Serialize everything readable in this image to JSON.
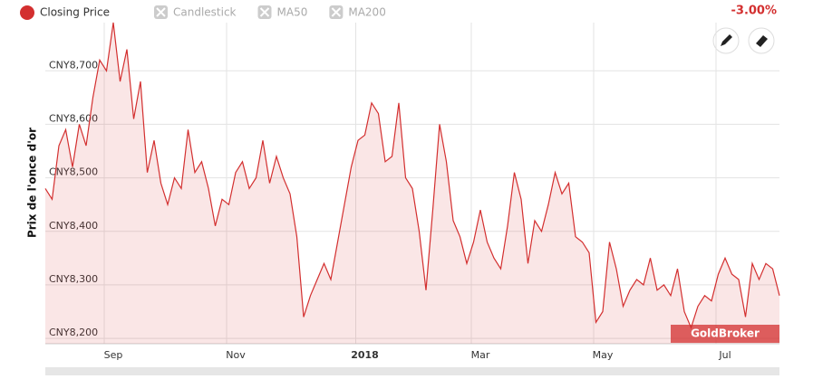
{
  "chart_data": {
    "type": "line",
    "y_axis_label": "Prix de l'once d'or",
    "change_label": "-3.00%",
    "watermark": "GoldBroker",
    "toggles": [
      "Candlestick",
      "MA50",
      "MA200"
    ],
    "categories": [
      null,
      null,
      null,
      null,
      null,
      null,
      null,
      null,
      null,
      null,
      "Sep",
      null,
      null,
      null,
      null,
      null,
      null,
      null,
      null,
      null,
      null,
      null,
      null,
      null,
      null,
      null,
      null,
      null,
      "Nov",
      null,
      null,
      null,
      null,
      null,
      null,
      null,
      null,
      null,
      null,
      null,
      null,
      null,
      null,
      null,
      null,
      null,
      null,
      "2018",
      null,
      null,
      null,
      null,
      null,
      null,
      null,
      null,
      null,
      null,
      null,
      null,
      null,
      null,
      null,
      null,
      "Mar",
      null,
      null,
      null,
      null,
      null,
      null,
      null,
      null,
      null,
      null,
      null,
      null,
      null,
      null,
      null,
      null,
      null,
      "May",
      null,
      null,
      null,
      null,
      null,
      null,
      null,
      null,
      null,
      null,
      null,
      null,
      null,
      null,
      null,
      null,
      null,
      "Jul",
      null,
      null,
      null,
      null,
      null,
      null,
      null,
      null
    ],
    "series": [
      {
        "name": "Closing Price",
        "color": "#d32f2f",
        "values": [
          8480,
          8460,
          8560,
          8590,
          8520,
          8600,
          8560,
          8650,
          8720,
          8700,
          8790,
          8680,
          8740,
          8610,
          8680,
          8510,
          8570,
          8490,
          8450,
          8500,
          8480,
          8590,
          8510,
          8530,
          8480,
          8410,
          8460,
          8450,
          8510,
          8530,
          8480,
          8500,
          8570,
          8490,
          8540,
          8500,
          8470,
          8390,
          8240,
          8280,
          8310,
          8340,
          8310,
          8380,
          8450,
          8520,
          8570,
          8580,
          8640,
          8620,
          8530,
          8540,
          8640,
          8500,
          8480,
          8400,
          8290,
          8440,
          8600,
          8530,
          8420,
          8390,
          8340,
          8380,
          8440,
          8380,
          8350,
          8330,
          8410,
          8510,
          8460,
          8340,
          8420,
          8400,
          8450,
          8510,
          8470,
          8490,
          8390,
          8380,
          8360,
          8230,
          8250,
          8380,
          8330,
          8260,
          8290,
          8310,
          8300,
          8350,
          8290,
          8300,
          8280,
          8330,
          8250,
          8220,
          8260,
          8280,
          8270,
          8320,
          8350,
          8320,
          8310,
          8240,
          8340,
          8310,
          8340,
          8330,
          8280
        ]
      }
    ],
    "ylim": [
      8190,
      8790
    ],
    "yticks": [
      {
        "value": 8200,
        "label": "CNY8,200"
      },
      {
        "value": 8300,
        "label": "CNY8,300"
      },
      {
        "value": 8400,
        "label": "CNY8,400"
      },
      {
        "value": 8500,
        "label": "CNY8,500"
      },
      {
        "value": 8600,
        "label": "CNY8,600"
      },
      {
        "value": 8700,
        "label": "CNY8,700"
      }
    ],
    "grid": true
  }
}
